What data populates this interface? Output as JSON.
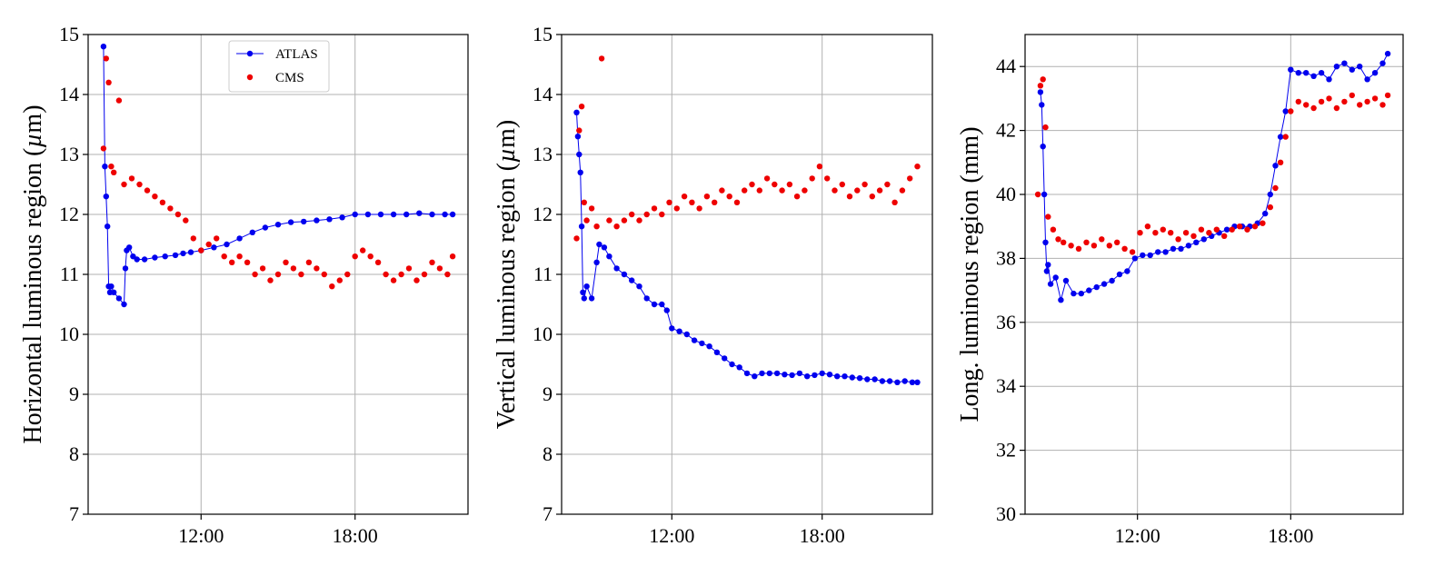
{
  "colors": {
    "atlas": "#0000ee",
    "cms": "#ee0000",
    "grid": "#b0b0b0"
  },
  "chart_data": [
    {
      "type": "scatter",
      "ylabel": "Horizontal luminous region (µm)",
      "ylabel_parts": {
        "pre": "Horizontal luminous region (",
        "sym": "µ",
        "post": "m)"
      },
      "xlim": [
        7.6,
        22.4
      ],
      "ylim": [
        7,
        15
      ],
      "yticks": [
        7,
        8,
        9,
        10,
        11,
        12,
        13,
        14,
        15
      ],
      "ytick_labels": [
        "7",
        "8",
        "9",
        "10",
        "11",
        "12",
        "13",
        "14",
        "15"
      ],
      "xticks": [
        12,
        18
      ],
      "xtick_labels": [
        "12:00",
        "18:00"
      ],
      "grid": true,
      "legend": {
        "location": "top-center",
        "entries": [
          "ATLAS",
          "CMS"
        ]
      },
      "series": [
        {
          "name": "ATLAS",
          "style": "line-markers",
          "x": [
            8.2,
            8.25,
            8.3,
            8.35,
            8.4,
            8.45,
            8.5,
            8.6,
            8.8,
            9.0,
            9.05,
            9.1,
            9.2,
            9.35,
            9.5,
            9.8,
            10.2,
            10.6,
            11.0,
            11.3,
            11.6,
            12.0,
            12.5,
            13.0,
            13.5,
            14.0,
            14.5,
            15.0,
            15.5,
            16.0,
            16.5,
            17.0,
            17.5,
            18.0,
            18.5,
            19.0,
            19.5,
            20.0,
            20.5,
            21.0,
            21.5,
            21.8
          ],
          "y": [
            14.8,
            12.8,
            12.3,
            11.8,
            10.8,
            10.7,
            10.8,
            10.7,
            10.6,
            10.5,
            11.1,
            11.4,
            11.45,
            11.3,
            11.25,
            11.25,
            11.28,
            11.3,
            11.32,
            11.35,
            11.37,
            11.4,
            11.45,
            11.5,
            11.6,
            11.7,
            11.78,
            11.83,
            11.87,
            11.88,
            11.9,
            11.92,
            11.95,
            12.0,
            12.0,
            12.0,
            12.0,
            12.0,
            12.02,
            12.0,
            12.0,
            12.0
          ]
        },
        {
          "name": "CMS",
          "style": "markers",
          "x": [
            8.2,
            8.3,
            8.4,
            8.5,
            8.6,
            8.8,
            9.0,
            9.3,
            9.6,
            9.9,
            10.2,
            10.5,
            10.8,
            11.1,
            11.4,
            11.7,
            12.0,
            12.3,
            12.6,
            12.9,
            13.2,
            13.5,
            13.8,
            14.1,
            14.4,
            14.7,
            15.0,
            15.3,
            15.6,
            15.9,
            16.2,
            16.5,
            16.8,
            17.1,
            17.4,
            17.7,
            18.0,
            18.3,
            18.6,
            18.9,
            19.2,
            19.5,
            19.8,
            20.1,
            20.4,
            20.7,
            21.0,
            21.3,
            21.6,
            21.8
          ],
          "y": [
            13.1,
            14.6,
            14.2,
            12.8,
            12.7,
            13.9,
            12.5,
            12.6,
            12.5,
            12.4,
            12.3,
            12.2,
            12.1,
            12.0,
            11.9,
            11.6,
            11.4,
            11.5,
            11.6,
            11.3,
            11.2,
            11.3,
            11.2,
            11.0,
            11.1,
            10.9,
            11.0,
            11.2,
            11.1,
            11.0,
            11.2,
            11.1,
            11.0,
            10.8,
            10.9,
            11.0,
            11.3,
            11.4,
            11.3,
            11.2,
            11.0,
            10.9,
            11.0,
            11.1,
            10.9,
            11.0,
            11.2,
            11.1,
            11.0,
            11.3
          ]
        }
      ]
    },
    {
      "type": "scatter",
      "ylabel": "Vertical luminous region (µm)",
      "ylabel_parts": {
        "pre": "Vertical luminous region (",
        "sym": "µ",
        "post": "m)"
      },
      "xlim": [
        7.6,
        22.4
      ],
      "ylim": [
        7,
        15
      ],
      "yticks": [
        7,
        8,
        9,
        10,
        11,
        12,
        13,
        14,
        15
      ],
      "ytick_labels": [
        "7",
        "8",
        "9",
        "10",
        "11",
        "12",
        "13",
        "14",
        "15"
      ],
      "xticks": [
        12,
        18
      ],
      "xtick_labels": [
        "12:00",
        "18:00"
      ],
      "grid": true,
      "series": [
        {
          "name": "ATLAS",
          "style": "line-markers",
          "x": [
            8.2,
            8.25,
            8.3,
            8.35,
            8.4,
            8.45,
            8.5,
            8.6,
            8.8,
            9.0,
            9.1,
            9.3,
            9.5,
            9.8,
            10.1,
            10.4,
            10.7,
            11.0,
            11.3,
            11.6,
            11.8,
            12.0,
            12.3,
            12.6,
            12.9,
            13.2,
            13.5,
            13.8,
            14.1,
            14.4,
            14.7,
            15.0,
            15.3,
            15.6,
            15.9,
            16.2,
            16.5,
            16.8,
            17.1,
            17.4,
            17.7,
            18.0,
            18.3,
            18.6,
            18.9,
            19.2,
            19.5,
            19.8,
            20.1,
            20.4,
            20.7,
            21.0,
            21.3,
            21.6,
            21.8
          ],
          "y": [
            13.7,
            13.3,
            13.0,
            12.7,
            11.8,
            10.7,
            10.6,
            10.8,
            10.6,
            11.2,
            11.5,
            11.45,
            11.3,
            11.1,
            11.0,
            10.9,
            10.8,
            10.6,
            10.5,
            10.5,
            10.4,
            10.1,
            10.05,
            10.0,
            9.9,
            9.85,
            9.8,
            9.7,
            9.6,
            9.5,
            9.45,
            9.35,
            9.3,
            9.35,
            9.35,
            9.35,
            9.33,
            9.32,
            9.35,
            9.3,
            9.32,
            9.35,
            9.33,
            9.3,
            9.3,
            9.28,
            9.27,
            9.25,
            9.25,
            9.22,
            9.22,
            9.2,
            9.22,
            9.2,
            9.2
          ]
        },
        {
          "name": "CMS",
          "style": "markers",
          "x": [
            8.2,
            8.3,
            8.4,
            8.5,
            8.6,
            8.8,
            9.0,
            9.2,
            9.5,
            9.8,
            10.1,
            10.4,
            10.7,
            11.0,
            11.3,
            11.6,
            11.9,
            12.2,
            12.5,
            12.8,
            13.1,
            13.4,
            13.7,
            14.0,
            14.3,
            14.6,
            14.9,
            15.2,
            15.5,
            15.8,
            16.1,
            16.4,
            16.7,
            17.0,
            17.3,
            17.6,
            17.9,
            18.2,
            18.5,
            18.8,
            19.1,
            19.4,
            19.7,
            20.0,
            20.3,
            20.6,
            20.9,
            21.2,
            21.5,
            21.8
          ],
          "y": [
            11.6,
            13.4,
            13.8,
            12.2,
            11.9,
            12.1,
            11.8,
            14.6,
            11.9,
            11.8,
            11.9,
            12.0,
            11.9,
            12.0,
            12.1,
            12.0,
            12.2,
            12.1,
            12.3,
            12.2,
            12.1,
            12.3,
            12.2,
            12.4,
            12.3,
            12.2,
            12.4,
            12.5,
            12.4,
            12.6,
            12.5,
            12.4,
            12.5,
            12.3,
            12.4,
            12.6,
            12.8,
            12.6,
            12.4,
            12.5,
            12.3,
            12.4,
            12.5,
            12.3,
            12.4,
            12.5,
            12.2,
            12.4,
            12.6,
            12.8
          ]
        }
      ]
    },
    {
      "type": "scatter",
      "ylabel": "Long. luminous region (mm)",
      "ylabel_parts": {
        "pre": "Long. luminous region (mm)",
        "sym": "",
        "post": ""
      },
      "xlim": [
        7.6,
        22.4
      ],
      "ylim": [
        30,
        45
      ],
      "yticks": [
        30,
        32,
        34,
        36,
        38,
        40,
        42,
        44
      ],
      "ytick_labels": [
        "30",
        "32",
        "34",
        "36",
        "38",
        "40",
        "42",
        "44"
      ],
      "xticks": [
        12,
        18
      ],
      "xtick_labels": [
        "12:00",
        "18:00"
      ],
      "grid": true,
      "series": [
        {
          "name": "ATLAS",
          "style": "line-markers",
          "x": [
            8.2,
            8.25,
            8.3,
            8.35,
            8.4,
            8.45,
            8.5,
            8.6,
            8.8,
            9.0,
            9.2,
            9.5,
            9.8,
            10.1,
            10.4,
            10.7,
            11.0,
            11.3,
            11.6,
            11.9,
            12.2,
            12.5,
            12.8,
            13.1,
            13.4,
            13.7,
            14.0,
            14.3,
            14.6,
            14.9,
            15.2,
            15.5,
            15.8,
            16.1,
            16.4,
            16.7,
            17.0,
            17.2,
            17.4,
            17.6,
            17.8,
            18.0,
            18.3,
            18.6,
            18.9,
            19.2,
            19.5,
            19.8,
            20.1,
            20.4,
            20.7,
            21.0,
            21.3,
            21.6,
            21.8
          ],
          "y": [
            43.2,
            42.8,
            41.5,
            40.0,
            38.5,
            37.6,
            37.8,
            37.2,
            37.4,
            36.7,
            37.3,
            36.9,
            36.9,
            37.0,
            37.1,
            37.2,
            37.3,
            37.5,
            37.6,
            38.0,
            38.1,
            38.1,
            38.2,
            38.2,
            38.3,
            38.3,
            38.4,
            38.5,
            38.6,
            38.7,
            38.8,
            38.9,
            39.0,
            39.0,
            39.0,
            39.1,
            39.4,
            40.0,
            40.9,
            41.8,
            42.6,
            43.9,
            43.8,
            43.8,
            43.7,
            43.8,
            43.6,
            44.0,
            44.1,
            43.9,
            44.0,
            43.6,
            43.8,
            44.1,
            44.4
          ]
        },
        {
          "name": "CMS",
          "style": "markers",
          "x": [
            8.1,
            8.2,
            8.3,
            8.4,
            8.5,
            8.7,
            8.9,
            9.1,
            9.4,
            9.7,
            10.0,
            10.3,
            10.6,
            10.9,
            11.2,
            11.5,
            11.8,
            12.1,
            12.4,
            12.7,
            13.0,
            13.3,
            13.6,
            13.9,
            14.2,
            14.5,
            14.8,
            15.1,
            15.4,
            15.7,
            16.0,
            16.3,
            16.6,
            16.9,
            17.2,
            17.4,
            17.6,
            17.8,
            18.0,
            18.3,
            18.6,
            18.9,
            19.2,
            19.5,
            19.8,
            20.1,
            20.4,
            20.7,
            21.0,
            21.3,
            21.6,
            21.8
          ],
          "y": [
            40.0,
            43.4,
            43.6,
            42.1,
            39.3,
            38.9,
            38.6,
            38.5,
            38.4,
            38.3,
            38.5,
            38.4,
            38.6,
            38.4,
            38.5,
            38.3,
            38.2,
            38.8,
            39.0,
            38.8,
            38.9,
            38.8,
            38.6,
            38.8,
            38.7,
            38.9,
            38.8,
            38.9,
            38.7,
            38.9,
            39.0,
            38.9,
            39.0,
            39.1,
            39.6,
            40.2,
            41.0,
            41.8,
            42.6,
            42.9,
            42.8,
            42.7,
            42.9,
            43.0,
            42.7,
            42.9,
            43.1,
            42.8,
            42.9,
            43.0,
            42.8,
            43.1
          ]
        }
      ]
    }
  ]
}
